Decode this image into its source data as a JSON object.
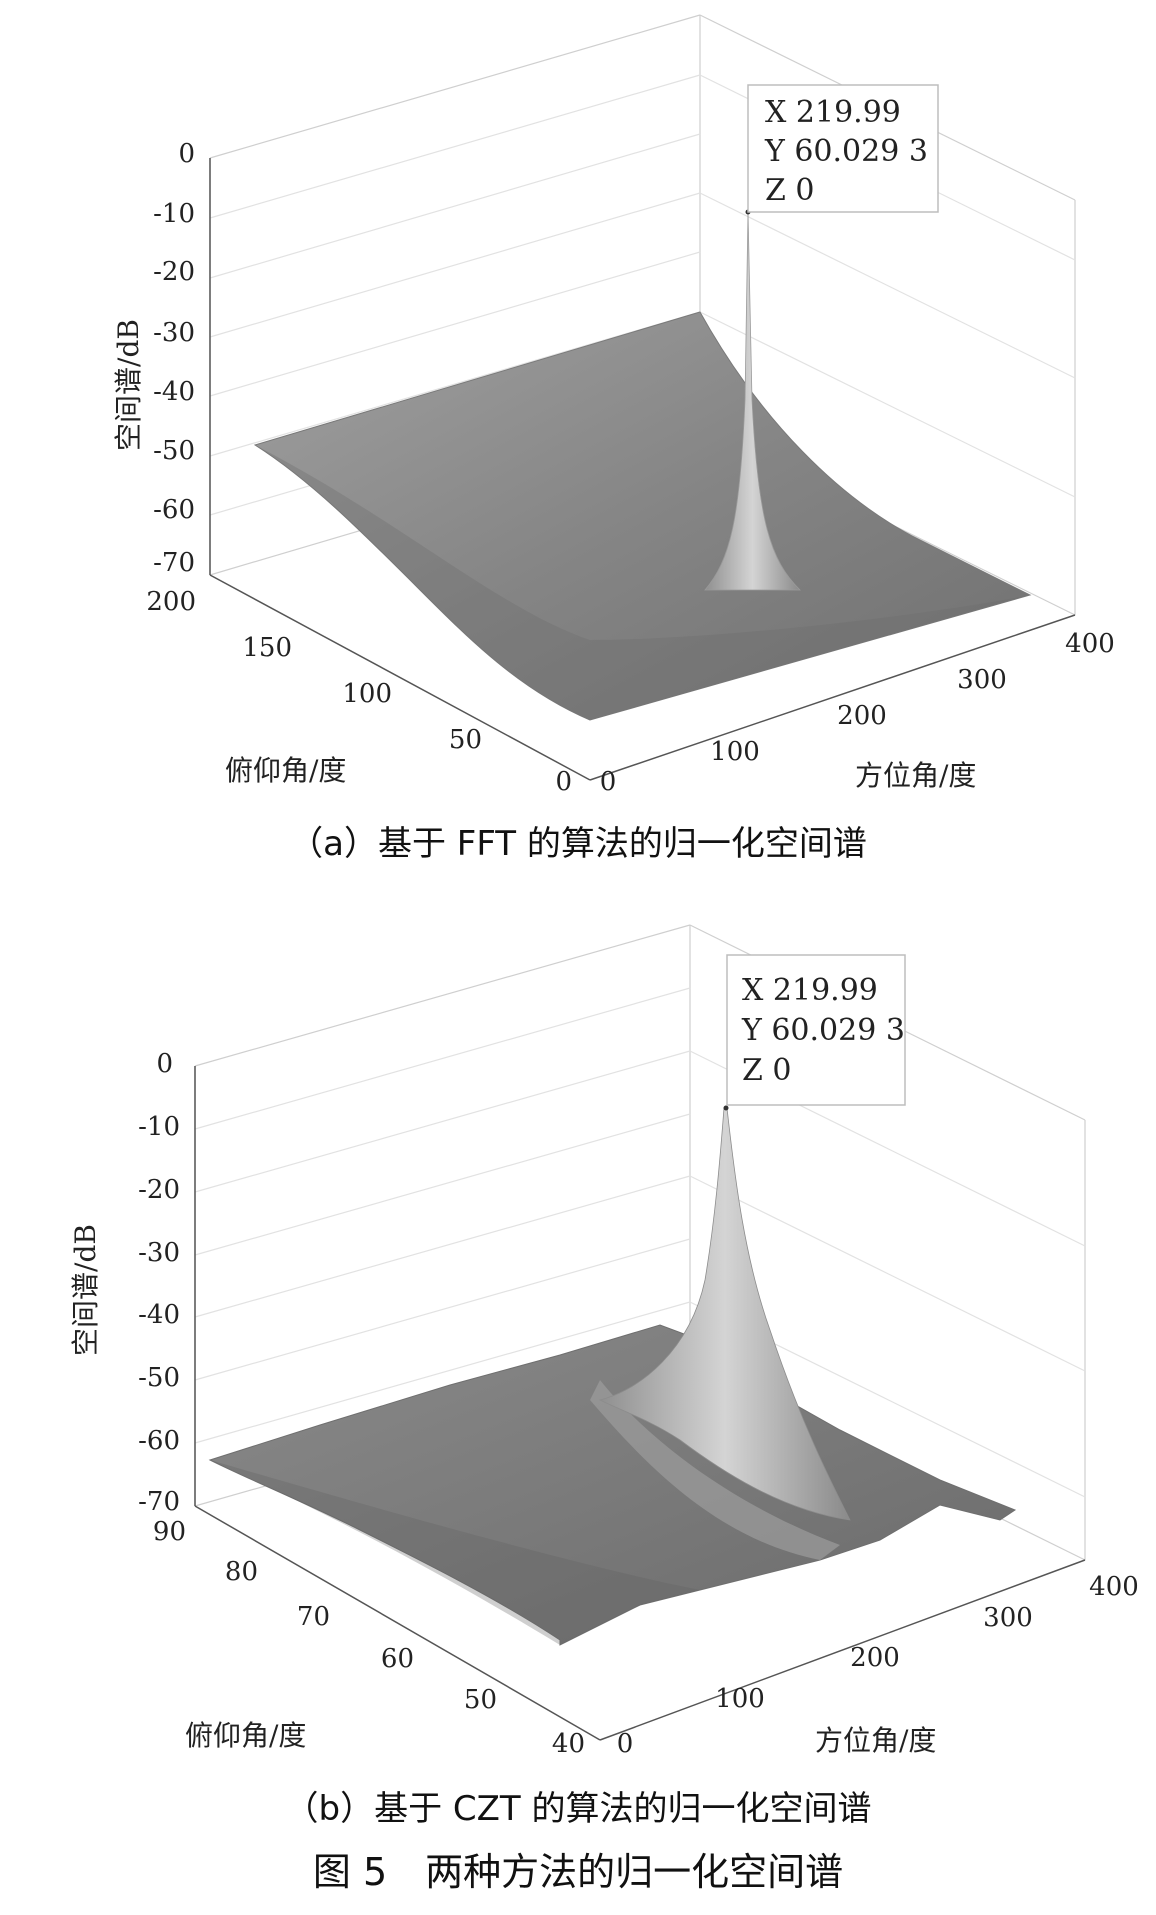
{
  "figure_title": "图 5　两种方法的归一化空间谱",
  "chart_data": [
    {
      "type": "surface",
      "caption": "（a）基于 FFT 的算法的归一化空间谱",
      "zlabel": "空间谱/dB",
      "xlabel": "方位角/度",
      "ylabel": "俯仰角/度",
      "zlim": [
        -70,
        0
      ],
      "xlim": [
        0,
        400
      ],
      "ylim": [
        0,
        200
      ],
      "z_ticks": [
        "0",
        "-10",
        "-20",
        "-30",
        "-40",
        "-50",
        "-60",
        "-70"
      ],
      "x_ticks": [
        "0",
        "100",
        "200",
        "300",
        "400"
      ],
      "y_ticks": [
        "0",
        "50",
        "100",
        "150",
        "200"
      ],
      "grid": true,
      "peak": {
        "x": 219.99,
        "y": 60.0293,
        "z": 0
      },
      "datatip": [
        "X 219.99",
        "Y 60.029 3",
        "Z 0"
      ],
      "surface_color": "#8a8a8a"
    },
    {
      "type": "surface",
      "caption": "（b）基于 CZT 的算法的归一化空间谱",
      "zlabel": "空间谱/dB",
      "xlabel": "方位角/度",
      "ylabel": "俯仰角/度",
      "zlim": [
        -70,
        0
      ],
      "xlim": [
        0,
        400
      ],
      "ylim": [
        40,
        90
      ],
      "z_ticks": [
        "0",
        "-10",
        "-20",
        "-30",
        "-40",
        "-50",
        "-60",
        "-70"
      ],
      "x_ticks": [
        "0",
        "100",
        "200",
        "300",
        "400"
      ],
      "y_ticks": [
        "40",
        "50",
        "60",
        "70",
        "80",
        "90"
      ],
      "grid": true,
      "peak": {
        "x": 219.99,
        "y": 60.0293,
        "z": 0
      },
      "datatip": [
        "X 219.99",
        "Y 60.029 3",
        "Z 0"
      ],
      "surface_color": "#7c7c7c"
    }
  ]
}
